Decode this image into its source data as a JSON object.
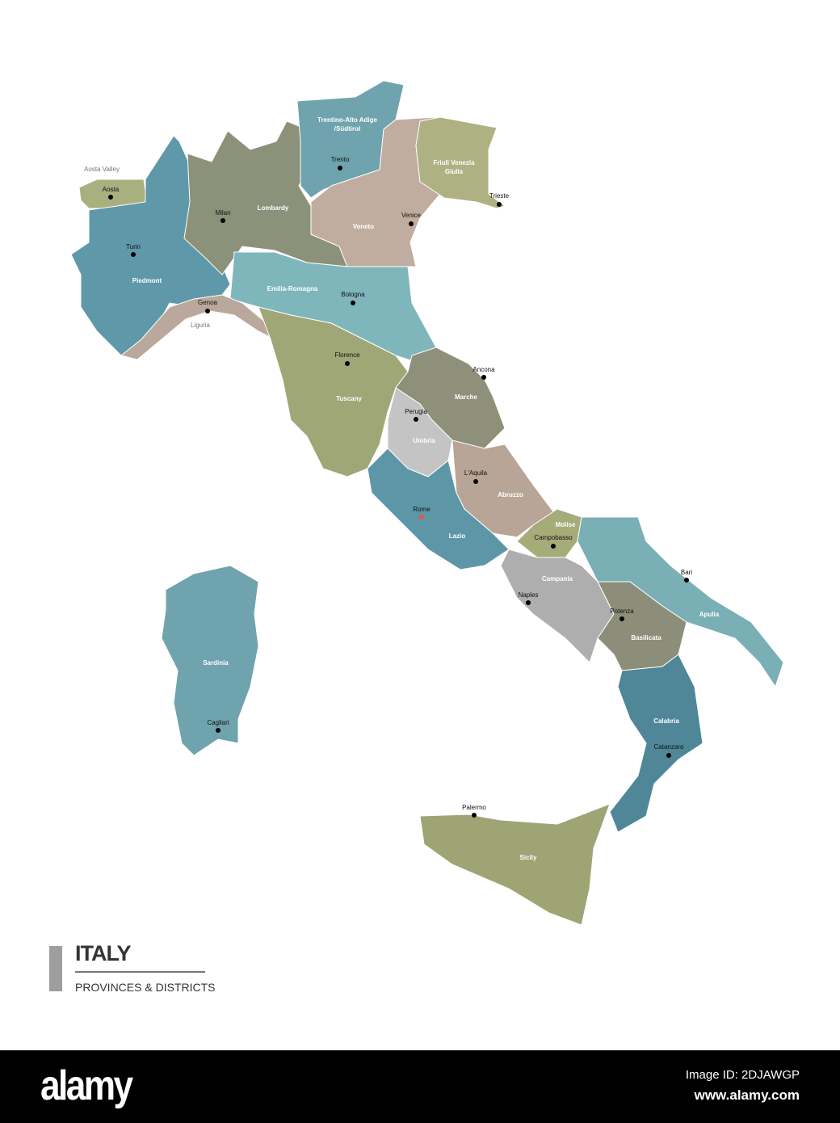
{
  "map": {
    "country": "ITALY",
    "subtitle": "PROVINCES & DISTRICTS",
    "regions": [
      {
        "name": "Aosta Valley",
        "capital": "Aosta",
        "color": "#a9b07f"
      },
      {
        "name": "Piedmont",
        "capital": "Turin",
        "color": "#5f98a8"
      },
      {
        "name": "Lombardy",
        "capital": "Milan",
        "color": "#8c917a"
      },
      {
        "name": "Trentino-Alto Adige /Südtirol",
        "capital": "Trento",
        "color": "#6fa3ad"
      },
      {
        "name": "Veneto",
        "capital": "Venice",
        "color": "#c1ad9f"
      },
      {
        "name": "Friuli Venezia Giulia",
        "capital": "Trieste",
        "color": "#aeb282"
      },
      {
        "name": "Emilia-Romagna",
        "capital": "Bologna",
        "color": "#7fb6bc"
      },
      {
        "name": "Liguria",
        "capital": "Genoa",
        "color": "#b9a89b"
      },
      {
        "name": "Tuscany",
        "capital": "Florence",
        "color": "#9fa777"
      },
      {
        "name": "Marche",
        "capital": "Ancona",
        "color": "#8e9079"
      },
      {
        "name": "Umbria",
        "capital": "Perugia",
        "color": "#c4c4c4"
      },
      {
        "name": "Abruzzo",
        "capital": "L'Aquila",
        "color": "#b8a597"
      },
      {
        "name": "Molise",
        "capital": "Campobasso",
        "color": "#a5ac78"
      },
      {
        "name": "Lazio",
        "capital": "Rome",
        "color": "#5d96a6"
      },
      {
        "name": "Campania",
        "capital": "Naples",
        "color": "#aeaeae"
      },
      {
        "name": "Apulia",
        "capital": "Bari",
        "color": "#79afb5"
      },
      {
        "name": "Basilicata",
        "capital": "Potenza",
        "color": "#8d8e7a"
      },
      {
        "name": "Calabria",
        "capital": "Catanzaro",
        "color": "#4f8799"
      },
      {
        "name": "Sicily",
        "capital": "Palermo",
        "color": "#9ea474"
      },
      {
        "name": "Sardinia",
        "capital": "Cagliari",
        "color": "#6fa3ad"
      }
    ],
    "national_capital_color": "#e05a4a"
  },
  "footer": {
    "logo": "alamy",
    "image_id": "Image ID: 2DJAWGP",
    "url": "www.alamy.com"
  }
}
